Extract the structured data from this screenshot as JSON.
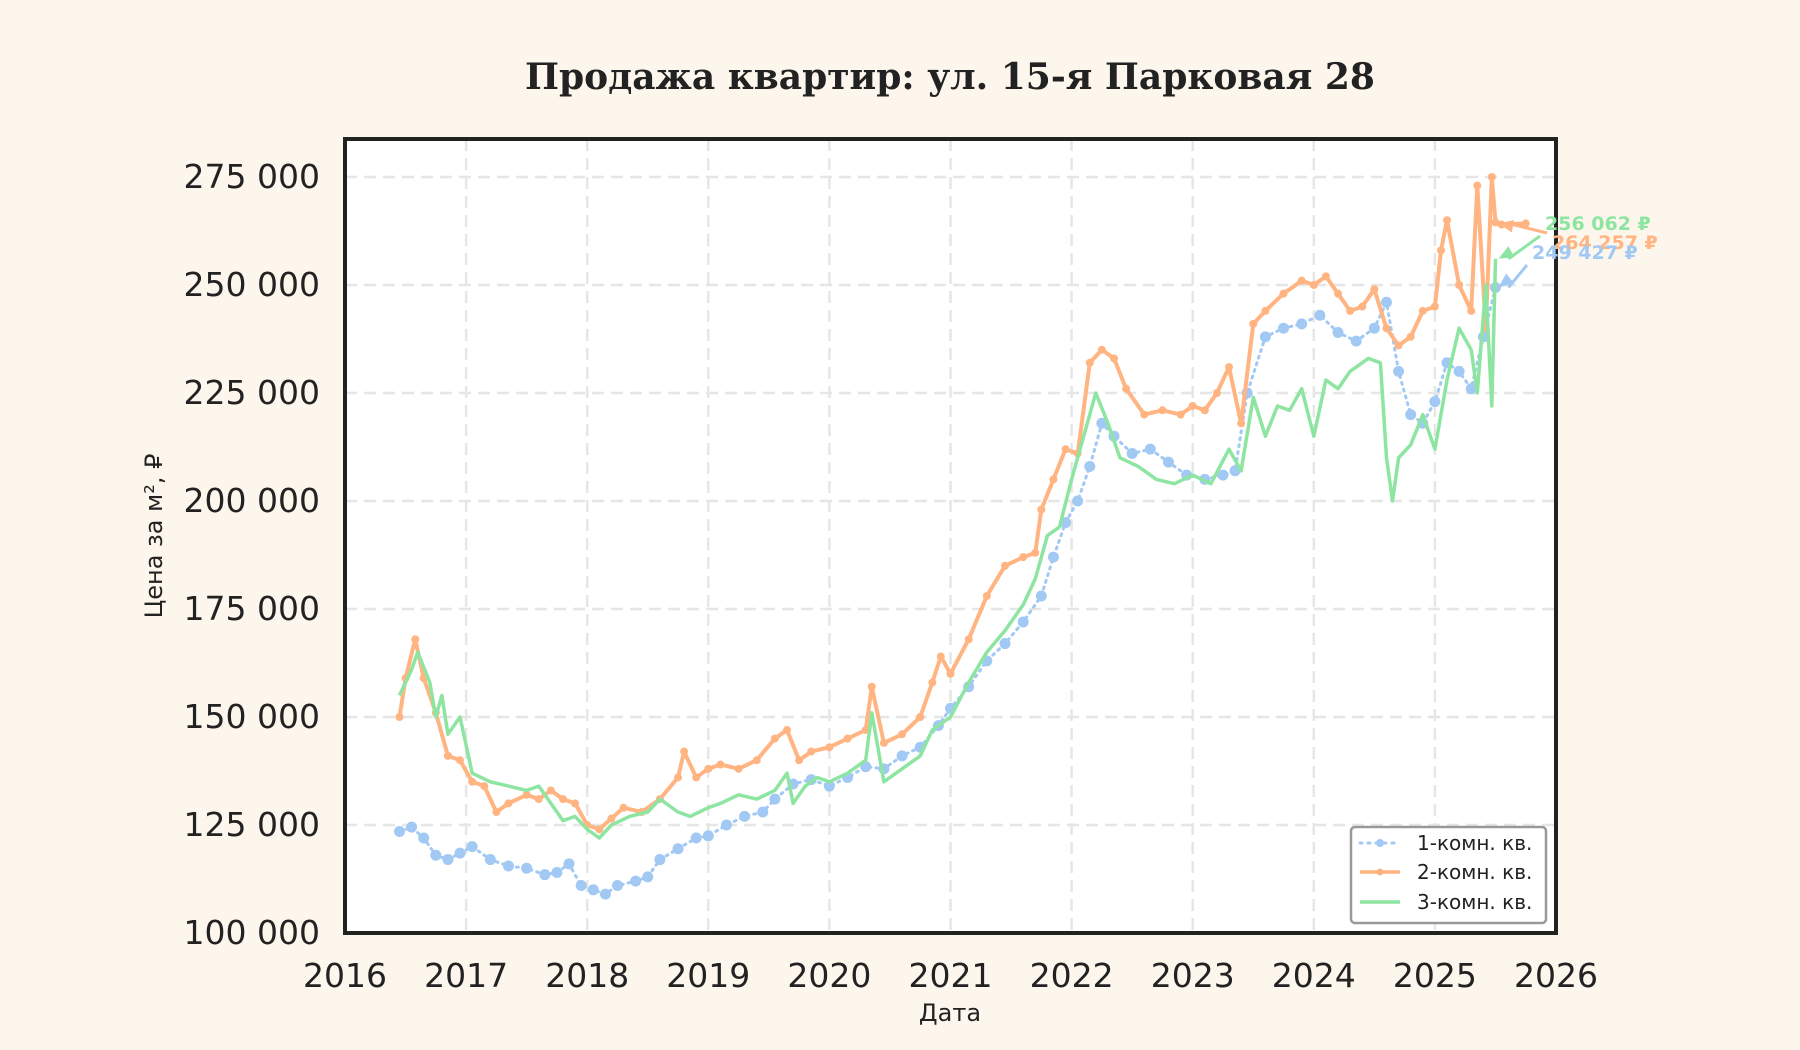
{
  "chart_data": {
    "type": "line",
    "title": "Продажа квартир: ул. 15-я Парковая 28",
    "xlabel": "Дата",
    "ylabel": "Цена за м², ₽",
    "xlim": [
      2016,
      2026
    ],
    "ylim": [
      100000,
      282000
    ],
    "x_ticks": [
      "2016",
      "2017",
      "2018",
      "2019",
      "2020",
      "2021",
      "2022",
      "2023",
      "2024",
      "2025",
      "2026"
    ],
    "y_ticks": [
      "100 000",
      "125 000",
      "150 000",
      "175 000",
      "200 000",
      "225 000",
      "250 000",
      "275 000"
    ],
    "grid": true,
    "legend_position": "lower right",
    "series": [
      {
        "name": "1-комн. кв.",
        "color": "#a1c9f4",
        "style": "dotted-markers",
        "x": [
          2016.45,
          2016.55,
          2016.65,
          2016.75,
          2016.85,
          2016.95,
          2017.05,
          2017.2,
          2017.35,
          2017.5,
          2017.65,
          2017.75,
          2017.85,
          2017.95,
          2018.05,
          2018.15,
          2018.25,
          2018.4,
          2018.5,
          2018.6,
          2018.75,
          2018.9,
          2019.0,
          2019.15,
          2019.3,
          2019.45,
          2019.55,
          2019.7,
          2019.85,
          2020.0,
          2020.15,
          2020.3,
          2020.45,
          2020.6,
          2020.75,
          2020.9,
          2021.0,
          2021.15,
          2021.3,
          2021.45,
          2021.6,
          2021.75,
          2021.85,
          2021.95,
          2022.05,
          2022.15,
          2022.25,
          2022.35,
          2022.5,
          2022.65,
          2022.8,
          2022.95,
          2023.1,
          2023.25,
          2023.35,
          2023.45,
          2023.6,
          2023.75,
          2023.9,
          2024.05,
          2024.2,
          2024.35,
          2024.5,
          2024.6,
          2024.7,
          2024.8,
          2024.9,
          2025.0,
          2025.1,
          2025.2,
          2025.3,
          2025.4,
          2025.5
        ],
        "values": [
          123500,
          124500,
          122000,
          118000,
          117000,
          118500,
          120000,
          117000,
          115500,
          115000,
          113500,
          114000,
          116000,
          111000,
          110000,
          109000,
          111000,
          112000,
          113000,
          117000,
          119500,
          122000,
          122500,
          125000,
          127000,
          128000,
          131000,
          134500,
          135500,
          134000,
          136000,
          138500,
          138000,
          141000,
          143000,
          148000,
          152000,
          157000,
          163000,
          167000,
          172000,
          178000,
          187000,
          195000,
          200000,
          208000,
          218000,
          215000,
          211000,
          212000,
          209000,
          206000,
          205000,
          206000,
          207000,
          225000,
          238000,
          240000,
          241000,
          243000,
          239000,
          237000,
          240000,
          246000,
          230000,
          220000,
          218000,
          223000,
          232000,
          230000,
          226000,
          238000,
          249427
        ]
      },
      {
        "name": "2-комн. кв.",
        "color": "#ffb482",
        "style": "line-markers",
        "x": [
          2016.45,
          2016.5,
          2016.58,
          2016.65,
          2016.75,
          2016.85,
          2016.95,
          2017.05,
          2017.15,
          2017.25,
          2017.35,
          2017.5,
          2017.6,
          2017.7,
          2017.8,
          2017.9,
          2018.0,
          2018.1,
          2018.2,
          2018.3,
          2018.45,
          2018.6,
          2018.75,
          2018.8,
          2018.9,
          2019.0,
          2019.1,
          2019.25,
          2019.4,
          2019.55,
          2019.65,
          2019.75,
          2019.85,
          2020.0,
          2020.15,
          2020.3,
          2020.35,
          2020.45,
          2020.6,
          2020.75,
          2020.85,
          2020.92,
          2021.0,
          2021.15,
          2021.3,
          2021.45,
          2021.6,
          2021.7,
          2021.75,
          2021.85,
          2021.95,
          2022.05,
          2022.15,
          2022.25,
          2022.35,
          2022.45,
          2022.6,
          2022.75,
          2022.9,
          2023.0,
          2023.1,
          2023.2,
          2023.3,
          2023.4,
          2023.5,
          2023.6,
          2023.75,
          2023.9,
          2024.0,
          2024.1,
          2024.2,
          2024.3,
          2024.4,
          2024.5,
          2024.6,
          2024.7,
          2024.8,
          2024.9,
          2025.0,
          2025.05,
          2025.1,
          2025.2,
          2025.3,
          2025.35,
          2025.42,
          2025.47,
          2025.5,
          2025.55,
          2025.75
        ],
        "values": [
          150000,
          159000,
          168000,
          159000,
          151000,
          141000,
          140000,
          135000,
          134000,
          128000,
          130000,
          132000,
          131000,
          133000,
          131000,
          130000,
          125000,
          124000,
          126500,
          129000,
          128000,
          131000,
          136000,
          142000,
          136000,
          138000,
          139000,
          138000,
          140000,
          145000,
          147000,
          140000,
          142000,
          143000,
          145000,
          147000,
          157000,
          144000,
          146000,
          150000,
          158000,
          164000,
          160000,
          168000,
          178000,
          185000,
          187000,
          188000,
          198000,
          205000,
          212000,
          211000,
          232000,
          235000,
          233000,
          226000,
          220000,
          221000,
          220000,
          222000,
          221000,
          225000,
          231000,
          218000,
          241000,
          244000,
          248000,
          251000,
          250000,
          252000,
          248000,
          244000,
          245000,
          249000,
          240000,
          236000,
          238000,
          244000,
          245000,
          258000,
          265000,
          250000,
          244000,
          273000,
          240000,
          275000,
          264500,
          264000,
          264257
        ]
      },
      {
        "name": "3-комн. кв.",
        "color": "#8de5a1",
        "style": "line",
        "x": [
          2016.45,
          2016.55,
          2016.6,
          2016.7,
          2016.75,
          2016.8,
          2016.85,
          2016.95,
          2017.05,
          2017.2,
          2017.35,
          2017.5,
          2017.6,
          2017.7,
          2017.8,
          2017.9,
          2018.0,
          2018.1,
          2018.2,
          2018.35,
          2018.5,
          2018.6,
          2018.75,
          2018.85,
          2019.0,
          2019.1,
          2019.25,
          2019.4,
          2019.55,
          2019.65,
          2019.7,
          2019.8,
          2019.9,
          2020.0,
          2020.15,
          2020.3,
          2020.35,
          2020.45,
          2020.6,
          2020.75,
          2020.85,
          2021.0,
          2021.15,
          2021.3,
          2021.45,
          2021.6,
          2021.7,
          2021.8,
          2021.9,
          2022.0,
          2022.1,
          2022.2,
          2022.3,
          2022.4,
          2022.55,
          2022.7,
          2022.85,
          2023.0,
          2023.15,
          2023.3,
          2023.4,
          2023.5,
          2023.6,
          2023.7,
          2023.8,
          2023.9,
          2024.0,
          2024.1,
          2024.2,
          2024.3,
          2024.45,
          2024.55,
          2024.6,
          2024.65,
          2024.7,
          2024.8,
          2024.9,
          2025.0,
          2025.1,
          2025.2,
          2025.3,
          2025.35,
          2025.42,
          2025.47,
          2025.5
        ],
        "values": [
          155000,
          161000,
          165000,
          158000,
          150000,
          155000,
          146000,
          150000,
          137000,
          135000,
          134000,
          133000,
          134000,
          130000,
          126000,
          127000,
          124000,
          122000,
          125000,
          127000,
          128000,
          131000,
          128000,
          127000,
          129000,
          130000,
          132000,
          131000,
          133000,
          137000,
          130000,
          134000,
          136000,
          135000,
          137000,
          140000,
          151000,
          135000,
          138000,
          141000,
          147000,
          150000,
          158000,
          165000,
          170000,
          176000,
          182000,
          192000,
          194000,
          205000,
          215000,
          225000,
          218000,
          210000,
          208000,
          205000,
          204000,
          206000,
          204000,
          212000,
          207000,
          224000,
          215000,
          222000,
          221000,
          226000,
          215000,
          228000,
          226000,
          230000,
          233000,
          232000,
          210000,
          200000,
          210000,
          213000,
          220000,
          212000,
          228000,
          240000,
          235000,
          225000,
          250000,
          222000,
          256062
        ]
      }
    ],
    "annotations": [
      {
        "text": "256 062 ₽",
        "series": "3-комн. кв.",
        "color": "#8de5a1",
        "x": 2025.5,
        "value": 256062
      },
      {
        "text": "264 257 ₽",
        "series": "2-комн. кв.",
        "color": "#ffb482",
        "x": 2025.5,
        "value": 264257
      },
      {
        "text": "249 427 ₽",
        "series": "1-комн. кв.",
        "color": "#a1c9f4",
        "x": 2025.5,
        "value": 249427
      }
    ]
  },
  "colors": {
    "background": "#fdf6ec",
    "plot_background": "#ffffff",
    "frame": "#222222",
    "grid": "#e6e6e6"
  }
}
